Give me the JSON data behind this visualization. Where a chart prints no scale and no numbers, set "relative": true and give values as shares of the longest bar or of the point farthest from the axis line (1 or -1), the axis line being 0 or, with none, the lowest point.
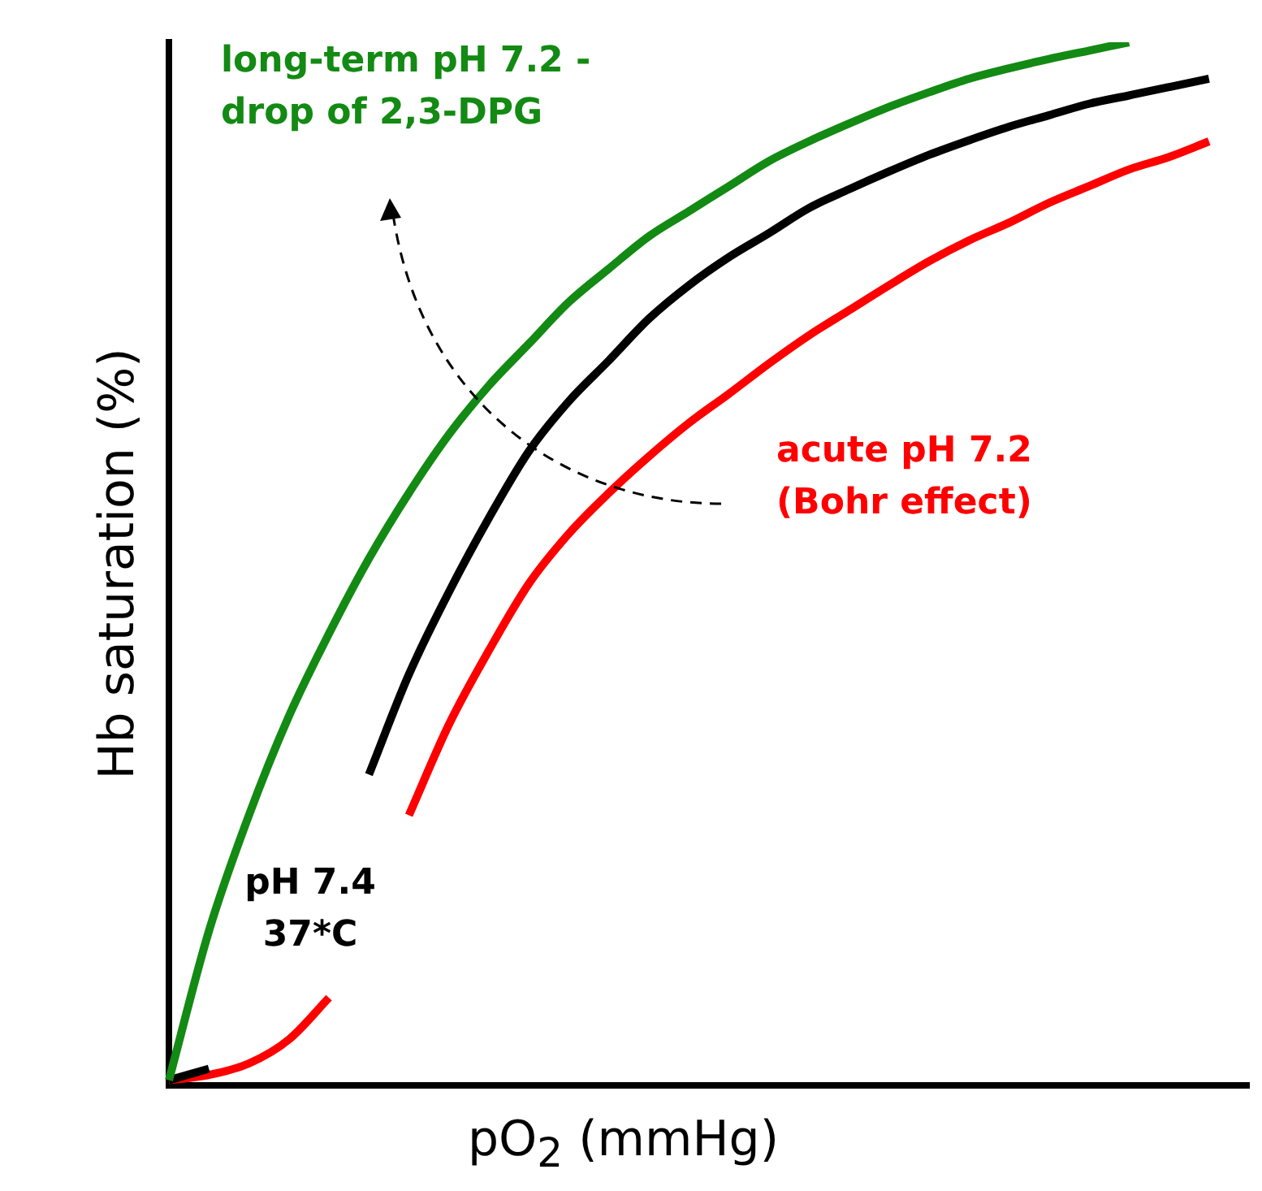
{
  "chart_data": {
    "type": "line",
    "relative": true,
    "xlabel": "pO$_{2}$ (mmHg)",
    "ylabel": "Hb saturation (%)",
    "grid": false,
    "legend": false,
    "marker": "none",
    "line_style": "solid",
    "categories": [
      null,
      null,
      null,
      null,
      null,
      null,
      null,
      null,
      null,
      null,
      null,
      null,
      null,
      null,
      null,
      null,
      null,
      null,
      null,
      null,
      null,
      null,
      null,
      null,
      null,
      null,
      null,
      null
    ],
    "series": [
      {
        "name": "long-term pH 7.2 - drop of 2,3-DPG",
        "color": "#138a13",
        "values": [
          0.005,
          0.148,
          0.259,
          0.354,
          0.433,
          0.505,
          0.568,
          0.624,
          0.671,
          0.711,
          0.751,
          0.783,
          0.814,
          0.838,
          0.862,
          0.886,
          0.905,
          0.922,
          0.938,
          0.952,
          0.965,
          0.975,
          0.984,
          0.992,
          1.0,
          null,
          null,
          null
        ]
      },
      {
        "name": "pH 7.4 37*C",
        "color": "#000000",
        "values": [
          0.005,
          0.016,
          null,
          null,
          null,
          0.298,
          0.394,
          0.473,
          0.544,
          0.608,
          0.656,
          0.695,
          0.735,
          0.767,
          0.794,
          0.817,
          0.841,
          0.859,
          0.876,
          0.892,
          0.906,
          0.919,
          0.93,
          0.941,
          0.949,
          0.957,
          0.965,
          null
        ]
      },
      {
        "name": "acute pH 7.2 (Bohr effect)",
        "color": "#ff0000",
        "values": [
          0.005,
          0.01,
          0.021,
          0.044,
          0.084,
          null,
          0.259,
          0.346,
          0.417,
          0.481,
          0.529,
          0.568,
          0.603,
          0.635,
          0.663,
          0.692,
          0.719,
          0.743,
          0.767,
          0.79,
          0.81,
          0.827,
          0.846,
          0.862,
          0.878,
          0.89,
          0.905,
          null
        ]
      }
    ]
  }
}
